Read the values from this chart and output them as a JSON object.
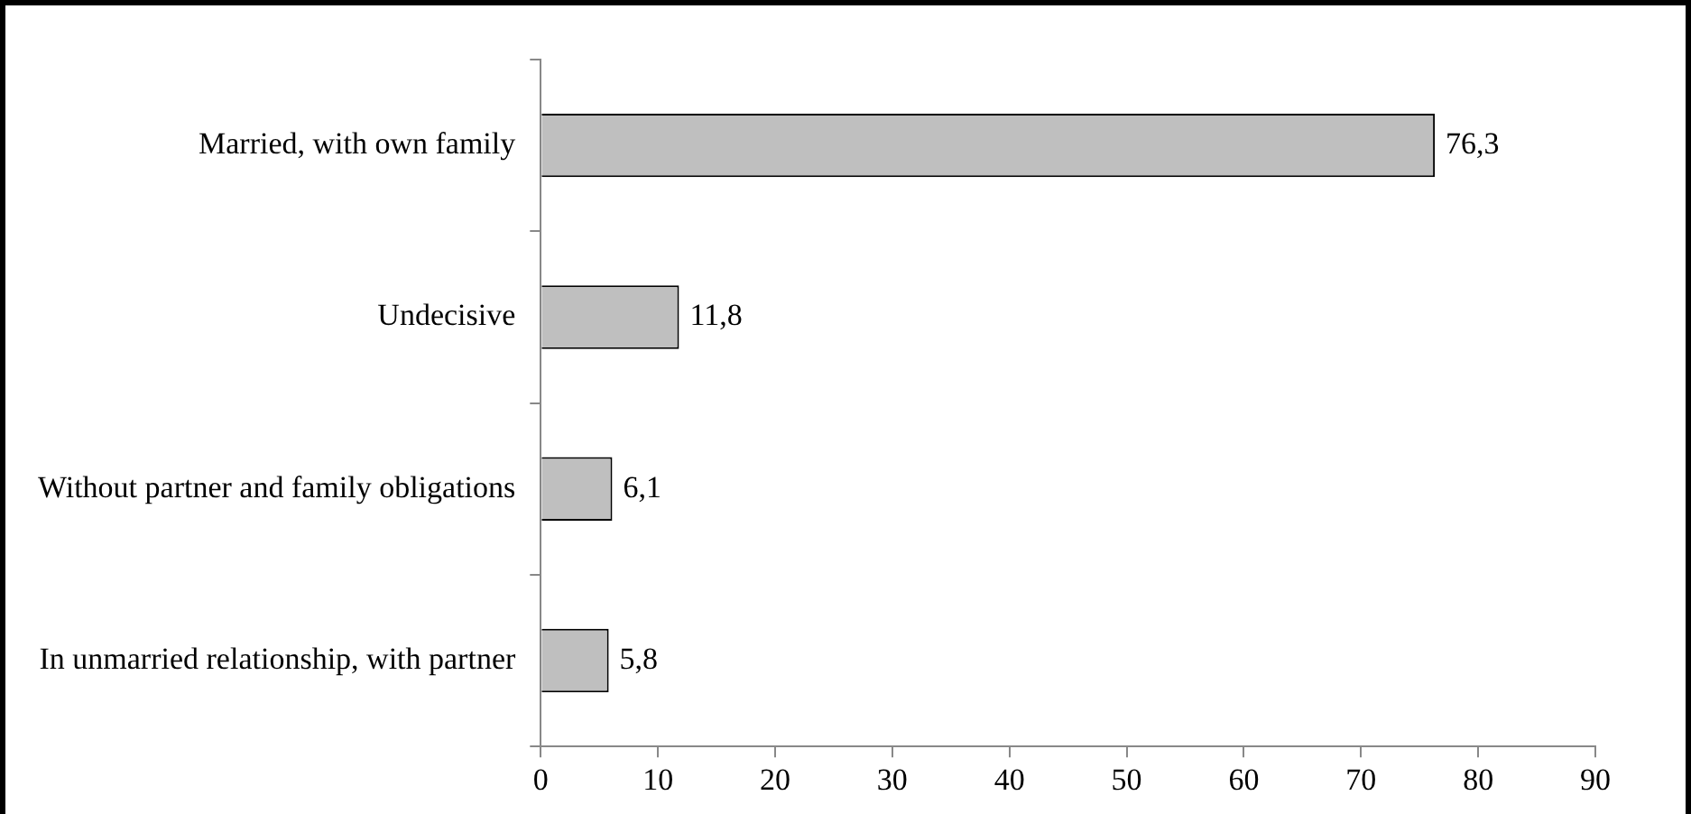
{
  "chart_data": {
    "type": "bar",
    "orientation": "horizontal",
    "categories": [
      "Married, with own family",
      "Undecisive",
      "Without partner and family obligations",
      "In unmarried relationship, with partner"
    ],
    "values": [
      76.3,
      11.8,
      6.1,
      5.8
    ],
    "value_labels": [
      "76,3",
      "11,8",
      "6,1",
      "5,8"
    ],
    "color": "#bfbfbf",
    "xlim": [
      0,
      90
    ],
    "xticks": [
      0,
      10,
      20,
      30,
      40,
      50,
      60,
      70,
      80,
      90
    ],
    "grid": false,
    "legend": false
  }
}
